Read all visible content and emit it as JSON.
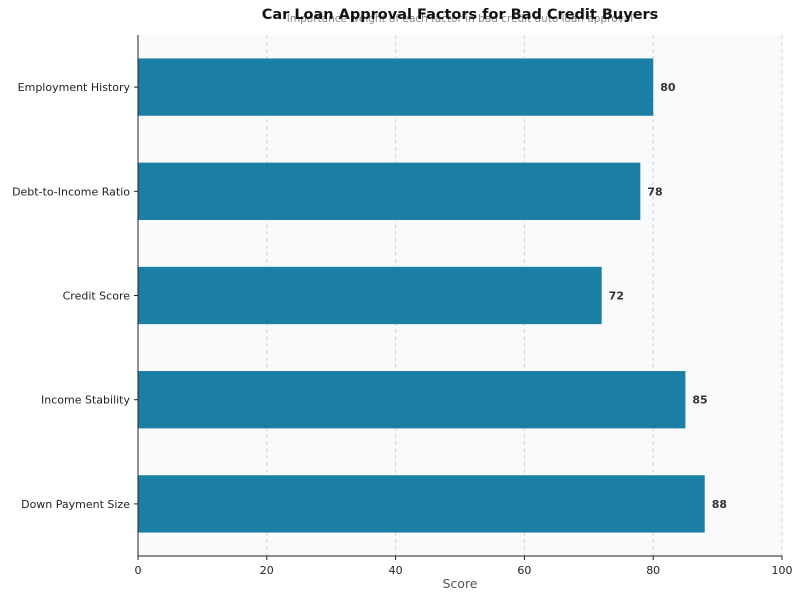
{
  "chart_data": {
    "type": "bar",
    "orientation": "horizontal",
    "title": "Car Loan Approval Factors for Bad Credit Buyers",
    "subtitle": "Importance weight of each factor in bad credit auto loan approval",
    "xlabel": "Score",
    "ylabel": "",
    "categories": [
      "Employment History",
      "Debt-to-Income Ratio",
      "Credit Score",
      "Income Stability",
      "Down Payment Size"
    ],
    "values": [
      80,
      78,
      72,
      85,
      88
    ],
    "xlim": [
      0,
      100
    ],
    "xticks": [
      0,
      20,
      40,
      60,
      80,
      100
    ],
    "grid": "vertical dashed",
    "legend": "none",
    "data_labels": true,
    "bar_color": "#1b7fa5",
    "plot_background": "#f8fafc"
  }
}
